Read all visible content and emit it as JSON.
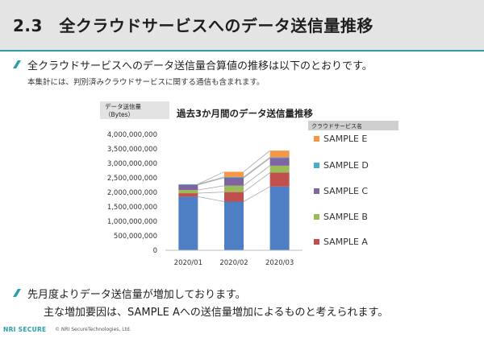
{
  "header": {
    "title": "2.3　全クラウドサービスへのデータ送信量推移"
  },
  "intro": {
    "text": "全クラウドサービスへのデータ送信量合算値の推移は以下のとおりです。",
    "subtext": "本集計には、判別済みクラウドサービスに関する通信も含まれます。"
  },
  "chart_data": {
    "type": "bar",
    "stacked": true,
    "title": "過去3か月間のデータ送信量推移",
    "ylabel_lines": [
      "データ送信量",
      "（Bytes）"
    ],
    "legend_title": "クラウドサービス名",
    "legend_position": "right",
    "categories": [
      "2020/01",
      "2020/02",
      "2020/03"
    ],
    "ylim": [
      0,
      4000000000
    ],
    "yticks": [
      0,
      500000000,
      1000000000,
      1500000000,
      2000000000,
      2500000000,
      3000000000,
      3500000000,
      4000000000
    ],
    "ytick_labels": [
      "0",
      "500,000,000",
      "1,000,000,000",
      "1,500,000,000",
      "2,000,000,000",
      "2,500,000,000",
      "3,000,000,000",
      "3,500,000,000",
      "4,000,000,000"
    ],
    "series_stack_order": [
      "SAMPLE_BASE",
      "SAMPLE A",
      "SAMPLE B",
      "SAMPLE C",
      "SAMPLE D",
      "SAMPLE E"
    ],
    "series": [
      {
        "name": "",
        "color": "#4e7fc4",
        "values": [
          1850000000,
          1680000000,
          2200000000
        ]
      },
      {
        "name": "SAMPLE A",
        "color": "#c0504d",
        "values": [
          120000000,
          330000000,
          480000000
        ]
      },
      {
        "name": "SAMPLE B",
        "color": "#9bbb59",
        "values": [
          110000000,
          220000000,
          240000000
        ]
      },
      {
        "name": "SAMPLE C",
        "color": "#8064a2",
        "values": [
          180000000,
          270000000,
          260000000
        ]
      },
      {
        "name": "SAMPLE D",
        "color": "#4bacc6",
        "values": [
          20000000,
          30000000,
          30000000
        ]
      },
      {
        "name": "SAMPLE E",
        "color": "#f79646",
        "values": [
          0,
          180000000,
          230000000
        ]
      }
    ],
    "legend_entries": [
      "SAMPLE E",
      "SAMPLE D",
      "SAMPLE C",
      "SAMPLE B",
      "SAMPLE A"
    ],
    "connector_lines": true,
    "grid": false
  },
  "findings": {
    "line1": "先月度よりデータ送信量が増加しております。",
    "line2": "主な増加要因は、SAMPLE Aへの送信量増加によるものと考えられます。"
  },
  "footer": {
    "logo": "NRI SECURE",
    "copyright": "© NRI SecureTechnologies, Ltd."
  }
}
